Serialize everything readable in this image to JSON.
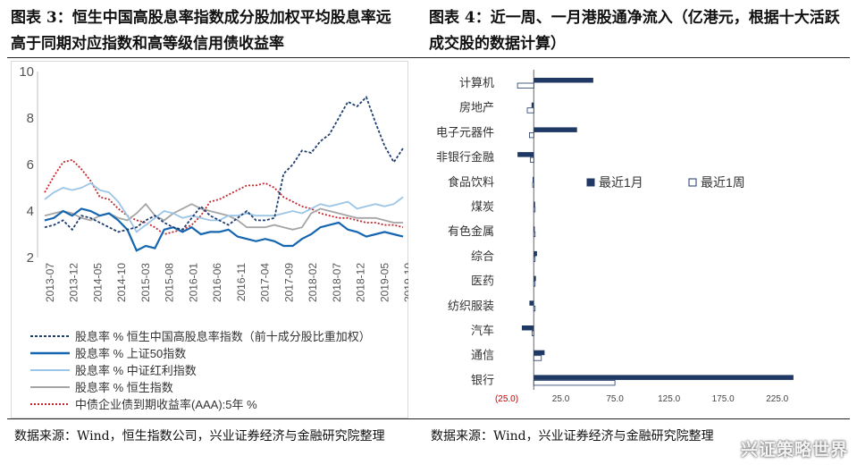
{
  "left_title": "图表 3：恒生中国高股息率指数成分股加权平均股息率远高于同期对应指数和高等级信用债收益率",
  "right_title": "图表 4：近一周、一月港股通净流入（亿港元，根据十大活跃成交股的数据计算）",
  "left_source": "数据来源：Wind，恒生指数公司，兴业证券经济与金融研究院整理",
  "right_source": "数据来源：Wind，兴业证券经济与金融研究院整理",
  "watermark": "兴证策略世界",
  "chart_data": [
    {
      "type": "line",
      "ylim": [
        2,
        10
      ],
      "yticks": [
        "2",
        "4",
        "6",
        "8",
        "10"
      ],
      "xticks": [
        "2013-07",
        "2013-12",
        "2014-05",
        "2014-10",
        "2015-03",
        "2015-08",
        "2016-01",
        "2016-06",
        "2016-11",
        "2017-04",
        "2017-09",
        "2018-02",
        "2018-07",
        "2018-12",
        "2019-05",
        "2019-10"
      ],
      "series": [
        {
          "name": "股息率 % 恒生中国高股息率指数（前十成分股比重加权）",
          "color": "#1F3E70",
          "style": "dashed",
          "values": [
            3.3,
            3.4,
            3.6,
            3.2,
            3.8,
            3.7,
            3.5,
            3.3,
            3.1,
            3.2,
            3.3,
            3.6,
            3.8,
            3.5,
            3.3,
            3.2,
            3.7,
            4.2,
            3.8,
            3.6,
            3.4,
            3.7,
            4.0,
            3.6,
            3.6,
            3.7,
            5.6,
            6.0,
            6.6,
            6.5,
            7.0,
            7.3,
            8.0,
            8.7,
            8.5,
            8.9,
            7.8,
            6.8,
            6.1,
            6.7
          ]
        },
        {
          "name": "股息率 % 上证50指数",
          "color": "#1565B0",
          "style": "solid",
          "values": [
            3.6,
            3.7,
            4.0,
            3.8,
            4.1,
            4.0,
            3.8,
            3.9,
            3.6,
            3.2,
            2.3,
            2.5,
            2.4,
            3.2,
            3.3,
            3.1,
            3.3,
            3.0,
            3.1,
            3.1,
            3.2,
            2.9,
            2.8,
            2.7,
            2.8,
            2.7,
            2.5,
            2.5,
            2.8,
            3.0,
            3.3,
            3.4,
            3.5,
            3.2,
            3.1,
            2.9,
            3.0,
            3.1,
            3.0,
            2.9
          ]
        },
        {
          "name": "股息率 % 中证红利指数",
          "color": "#9CC5E6",
          "style": "solid",
          "values": [
            4.5,
            4.8,
            5.0,
            4.9,
            5.0,
            5.2,
            4.9,
            4.8,
            4.4,
            3.8,
            3.1,
            3.4,
            3.7,
            4.0,
            3.9,
            3.7,
            3.8,
            3.7,
            3.6,
            3.6,
            3.8,
            3.8,
            3.9,
            3.8,
            3.8,
            3.8,
            3.9,
            4.0,
            3.9,
            4.1,
            4.3,
            4.2,
            4.3,
            4.4,
            4.1,
            4.2,
            4.3,
            4.2,
            4.3,
            4.6
          ]
        },
        {
          "name": "股息率 % 恒生指数",
          "color": "#A5A5A5",
          "style": "solid",
          "values": [
            3.8,
            3.9,
            4.0,
            3.9,
            3.7,
            3.6,
            3.8,
            3.9,
            3.7,
            3.6,
            3.9,
            4.3,
            3.8,
            3.6,
            3.9,
            4.1,
            4.3,
            4.1,
            4.0,
            3.9,
            3.8,
            3.6,
            3.3,
            3.3,
            3.3,
            3.4,
            3.3,
            3.2,
            3.3,
            3.9,
            4.1,
            4.0,
            3.9,
            3.8,
            3.7,
            3.7,
            3.7,
            3.6,
            3.5,
            3.5
          ]
        },
        {
          "name": "中债企业债到期收益率(AAA):5年 %",
          "color": "#C0282E",
          "style": "dotted",
          "values": [
            4.8,
            5.5,
            6.1,
            6.2,
            5.8,
            5.3,
            4.6,
            4.5,
            4.1,
            3.8,
            3.6,
            3.5,
            3.3,
            3.0,
            3.1,
            3.2,
            3.4,
            3.8,
            4.4,
            4.5,
            4.7,
            4.9,
            5.1,
            5.1,
            5.2,
            5.0,
            4.6,
            4.4,
            4.2,
            4.1,
            3.9,
            3.8,
            3.7,
            3.7,
            3.6,
            3.5,
            3.5,
            3.4,
            3.4,
            3.3
          ]
        }
      ]
    },
    {
      "type": "bar",
      "orientation": "horizontal",
      "categories": [
        "计算机",
        "房地产",
        "电子元器件",
        "非银行金融",
        "食品饮料",
        "煤炭",
        "有色金属",
        "综合",
        "医药",
        "纺织服装",
        "汽车",
        "通信",
        "银行"
      ],
      "xlim": [
        -25,
        250
      ],
      "xticks": [
        "(25.0)",
        "25.0",
        "75.0",
        "125.0",
        "175.0",
        "225.0"
      ],
      "series": [
        {
          "name": "最近1月",
          "color": "#1F3864",
          "values": [
            55,
            -2,
            40,
            -15,
            -1,
            0.4,
            -0.3,
            3,
            2,
            -4,
            -11,
            10,
            240
          ]
        },
        {
          "name": "最近1周",
          "color": "#FFFFFF",
          "values": [
            -15,
            -6,
            -4,
            -3,
            -1,
            0.3,
            0.3,
            0.8,
            0.8,
            0,
            -1.5,
            7,
            75
          ]
        }
      ]
    }
  ]
}
